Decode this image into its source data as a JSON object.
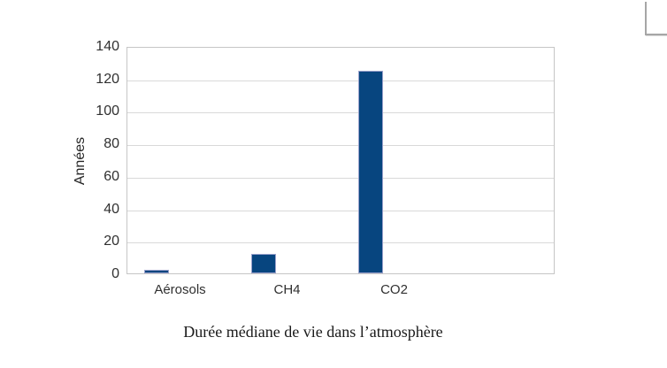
{
  "page": {
    "background": "#ffffff"
  },
  "decoration": {
    "page_corner_color": "#a6a6a6"
  },
  "chart_data": {
    "type": "bar",
    "title": "",
    "caption": "Durée médiane de vie dans l’atmosphère",
    "xlabel": "",
    "ylabel": "Années",
    "categories": [
      "Aérosols",
      "CH4",
      "CO2"
    ],
    "values": [
      2,
      12,
      125
    ],
    "ylim": [
      0,
      140
    ],
    "yticks": [
      0,
      20,
      40,
      60,
      80,
      100,
      120,
      140
    ],
    "grid": true,
    "legend": "none",
    "bar_color": "#07457f",
    "bar_border_color": "#99a0cb",
    "grid_color": "#d9d9d9",
    "plot_border_color": "#c6c6c6",
    "tick_label_color": "#303030"
  }
}
